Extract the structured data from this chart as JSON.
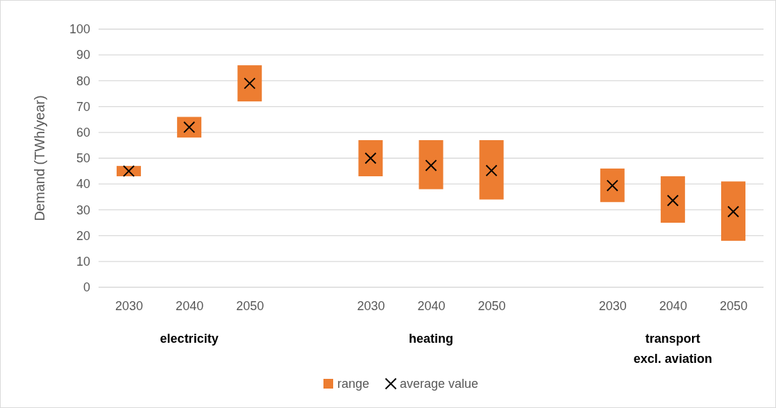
{
  "chart_data": {
    "type": "bar",
    "ylabel": "Demand (TWh/year)",
    "categories": [
      "2030",
      "2040",
      "2050",
      "2030",
      "2040",
      "2050",
      "2030",
      "2040",
      "2050"
    ],
    "annotations": [
      "electricity",
      "heating",
      "transport\nexcl. aviation"
    ],
    "series": [
      {
        "name": "range",
        "color": "#ed7d31",
        "base": [
          43,
          58,
          72,
          43,
          38,
          34,
          33,
          25,
          18
        ],
        "values": [
          4,
          8,
          14,
          14,
          19,
          23,
          13,
          18,
          23
        ]
      },
      {
        "name": "average value",
        "type": "scatter",
        "color": "#000000",
        "marker": "cross",
        "values": [
          45,
          62,
          79,
          50,
          47.2,
          45.2,
          39.4,
          33.6,
          29.3
        ]
      }
    ],
    "ylim": [
      0,
      100
    ],
    "yticks": [
      0,
      10,
      20,
      30,
      40,
      50,
      60,
      70,
      80,
      90,
      100
    ],
    "grid": "y",
    "legend": "bottom"
  }
}
